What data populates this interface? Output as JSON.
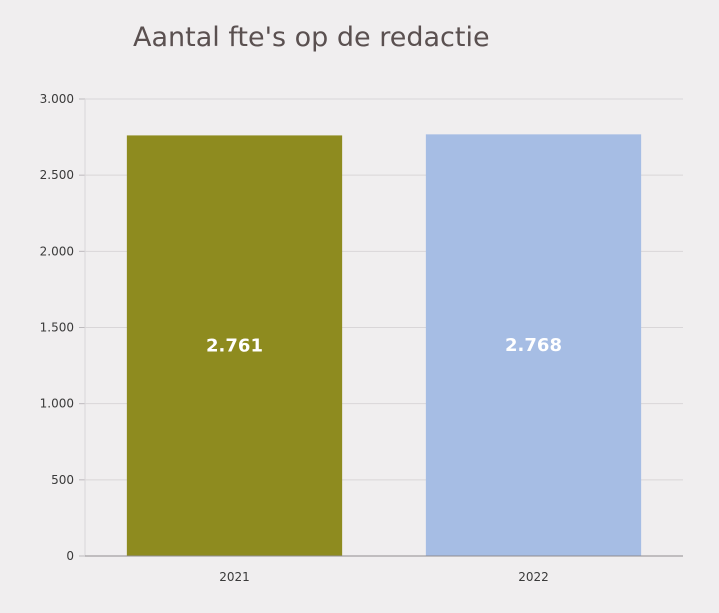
{
  "chart_data": {
    "type": "bar",
    "title": "Aantal fte's op de redactie",
    "categories": [
      "2021",
      "2022"
    ],
    "values": [
      2761,
      2768
    ],
    "value_labels": [
      "2.761",
      "2.768"
    ],
    "bar_colors": [
      "#8e8b1f",
      "#a6bde4"
    ],
    "ylim": [
      0,
      3000
    ],
    "yticks": [
      0,
      500,
      1000,
      1500,
      2000,
      2500,
      3000
    ],
    "ytick_labels": [
      "0",
      "500",
      "1.000",
      "1.500",
      "2.000",
      "2.500",
      "3.000"
    ],
    "grid": true,
    "xlabel": "",
    "ylabel": ""
  }
}
